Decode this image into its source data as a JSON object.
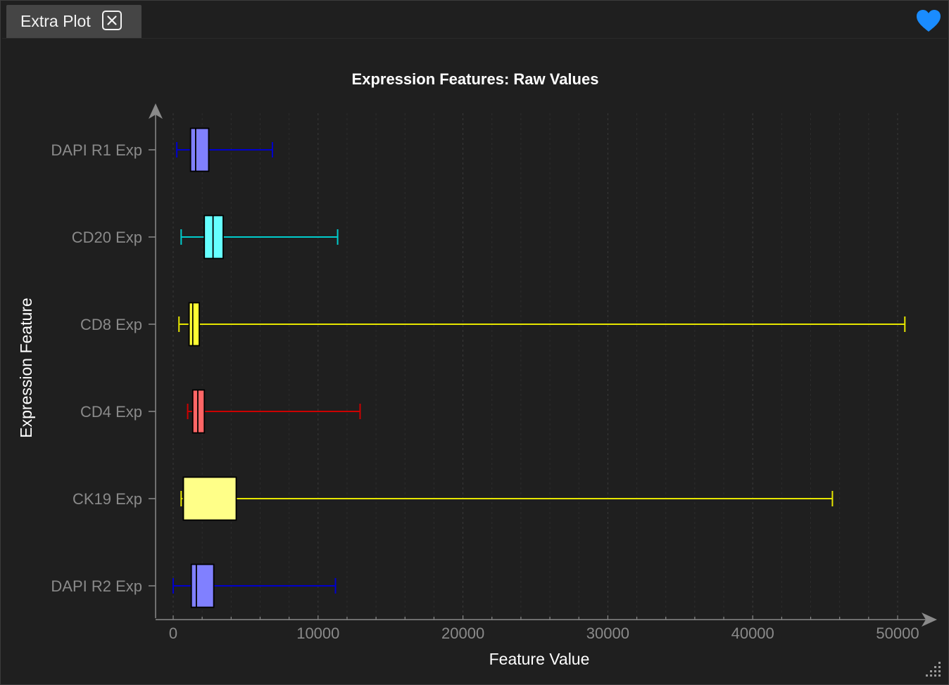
{
  "tab": {
    "label": "Extra Plot"
  },
  "colors": {
    "background": "#1f1f1f",
    "tab": "#454545",
    "heart": "#1a8cff",
    "axis": "#8a8a8a"
  },
  "chart_data": {
    "type": "boxplot-horizontal",
    "title": "Expression Features: Raw Values",
    "xlabel": "Feature Value",
    "ylabel": "Expression Feature",
    "xlim": [
      -1200,
      52500
    ],
    "xticks": [
      0,
      10000,
      20000,
      30000,
      40000,
      50000
    ],
    "xtick_labels": [
      "0",
      "10000",
      "20000",
      "30000",
      "40000",
      "50000"
    ],
    "grid": "vertical dashed",
    "series": [
      {
        "name": "DAPI R1 Exp",
        "whisker_low": 250,
        "q1": 1200,
        "median": 1550,
        "q3": 2450,
        "whisker_high": 6850,
        "fill": "#8080ff",
        "line": "#0000cc"
      },
      {
        "name": "CD20 Exp",
        "whisker_low": 550,
        "q1": 2150,
        "median": 2750,
        "q3": 3450,
        "whisker_high": 11350,
        "fill": "#66ffff",
        "line": "#00cccc"
      },
      {
        "name": "CD8 Exp",
        "whisker_low": 400,
        "q1": 1100,
        "median": 1350,
        "q3": 1800,
        "whisker_high": 50500,
        "fill": "#ffff33",
        "line": "#e6e600"
      },
      {
        "name": "CD4 Exp",
        "whisker_low": 1000,
        "q1": 1350,
        "median": 1700,
        "q3": 2150,
        "whisker_high": 12900,
        "fill": "#ff6666",
        "line": "#cc0000"
      },
      {
        "name": "CK19 Exp",
        "whisker_low": 550,
        "q1": 700,
        "median": 700,
        "q3": 4350,
        "whisker_high": 45500,
        "fill": "#ffff88",
        "line": "#e6e600"
      },
      {
        "name": "DAPI R2 Exp",
        "whisker_low": 0,
        "q1": 1250,
        "median": 1600,
        "q3": 2800,
        "whisker_high": 11200,
        "fill": "#8080ff",
        "line": "#0000cc"
      }
    ]
  }
}
